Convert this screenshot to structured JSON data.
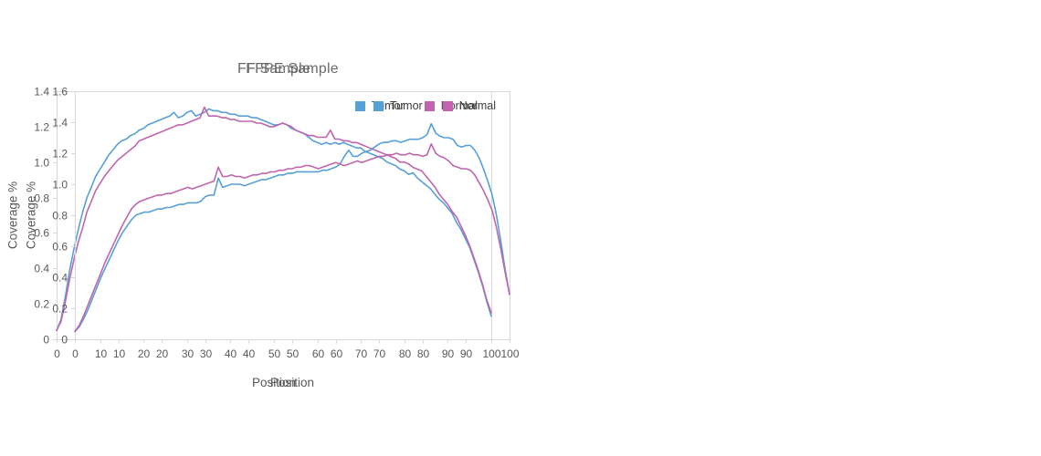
{
  "page": {
    "background": "#ffffff"
  },
  "colors": {
    "axis": "#d9d9d9",
    "tick_text": "#595959",
    "title_text": "#6b6b6b",
    "legend_text": "#3d3d3d",
    "tumor": "#57a0d6",
    "normal": "#c065ad"
  },
  "chart_data": [
    {
      "type": "line",
      "title": "FF Sample",
      "xlabel": "Position",
      "ylabel": "Coverage %",
      "xlim": [
        0,
        100
      ],
      "ylim": [
        0,
        1.4
      ],
      "xtick_labels": [
        "0",
        "10",
        "20",
        "30",
        "40",
        "50",
        "60",
        "70",
        "80",
        "90",
        "100"
      ],
      "ytick_labels": [
        "0",
        "0.2",
        "0.4",
        "0.6",
        "0.8",
        "1.0",
        "1.2",
        "1.4"
      ],
      "grid": false,
      "legend_position": "top-right",
      "x": [
        0,
        1,
        2,
        3,
        4,
        5,
        6,
        7,
        8,
        9,
        10,
        11,
        12,
        13,
        14,
        15,
        16,
        17,
        18,
        19,
        20,
        21,
        22,
        23,
        24,
        25,
        26,
        27,
        28,
        29,
        30,
        31,
        32,
        33,
        34,
        35,
        36,
        37,
        38,
        39,
        40,
        41,
        42,
        43,
        44,
        45,
        46,
        47,
        48,
        49,
        50,
        51,
        52,
        53,
        54,
        55,
        56,
        57,
        58,
        59,
        60,
        61,
        62,
        63,
        64,
        65,
        66,
        67,
        68,
        69,
        70,
        71,
        72,
        73,
        74,
        75,
        76,
        77,
        78,
        79,
        80,
        81,
        82,
        83,
        84,
        85,
        86,
        87,
        88,
        89,
        90,
        91,
        92,
        93,
        94,
        95,
        96,
        97,
        98,
        99,
        100
      ],
      "series": [
        {
          "name": "Tumor",
          "color": "#57a0d6",
          "values": [
            0.05,
            0.11,
            0.24,
            0.39,
            0.51,
            0.62,
            0.72,
            0.8,
            0.86,
            0.92,
            0.96,
            1.0,
            1.04,
            1.07,
            1.1,
            1.12,
            1.13,
            1.15,
            1.16,
            1.18,
            1.19,
            1.21,
            1.22,
            1.23,
            1.24,
            1.25,
            1.26,
            1.28,
            1.25,
            1.26,
            1.28,
            1.29,
            1.26,
            1.27,
            1.28,
            1.3,
            1.29,
            1.29,
            1.28,
            1.28,
            1.27,
            1.27,
            1.26,
            1.26,
            1.26,
            1.25,
            1.25,
            1.24,
            1.23,
            1.22,
            1.21,
            1.21,
            1.22,
            1.21,
            1.19,
            1.18,
            1.17,
            1.16,
            1.14,
            1.12,
            1.11,
            1.1,
            1.11,
            1.1,
            1.11,
            1.1,
            1.11,
            1.1,
            1.09,
            1.08,
            1.08,
            1.06,
            1.05,
            1.04,
            1.03,
            1.02,
            1.0,
            0.99,
            0.98,
            0.96,
            0.95,
            0.93,
            0.94,
            0.91,
            0.89,
            0.87,
            0.85,
            0.82,
            0.79,
            0.77,
            0.74,
            0.71,
            0.66,
            0.62,
            0.57,
            0.52,
            0.45,
            0.38,
            0.3,
            0.21,
            0.13
          ]
        },
        {
          "name": "Normal",
          "color": "#c065ad",
          "values": [
            0.05,
            0.1,
            0.21,
            0.34,
            0.45,
            0.55,
            0.63,
            0.72,
            0.78,
            0.84,
            0.88,
            0.92,
            0.95,
            0.98,
            1.01,
            1.03,
            1.05,
            1.07,
            1.09,
            1.12,
            1.13,
            1.14,
            1.15,
            1.16,
            1.17,
            1.18,
            1.19,
            1.2,
            1.21,
            1.21,
            1.22,
            1.23,
            1.24,
            1.25,
            1.31,
            1.26,
            1.26,
            1.26,
            1.25,
            1.25,
            1.24,
            1.24,
            1.23,
            1.23,
            1.23,
            1.23,
            1.22,
            1.22,
            1.21,
            1.2,
            1.2,
            1.21,
            1.22,
            1.21,
            1.2,
            1.18,
            1.17,
            1.16,
            1.15,
            1.15,
            1.14,
            1.14,
            1.14,
            1.18,
            1.13,
            1.13,
            1.12,
            1.12,
            1.11,
            1.11,
            1.1,
            1.09,
            1.08,
            1.07,
            1.06,
            1.05,
            1.04,
            1.03,
            1.02,
            1.0,
            1.0,
            0.99,
            0.97,
            0.96,
            0.95,
            0.92,
            0.89,
            0.86,
            0.82,
            0.79,
            0.76,
            0.72,
            0.69,
            0.64,
            0.59,
            0.53,
            0.46,
            0.39,
            0.31,
            0.22,
            0.15
          ]
        }
      ]
    },
    {
      "type": "line",
      "title": "FFPE Sample",
      "xlabel": "Position",
      "ylabel": "Coverage %",
      "xlim": [
        0,
        100
      ],
      "ylim": [
        0,
        1.6
      ],
      "xtick_labels": [
        "0",
        "10",
        "20",
        "30",
        "40",
        "50",
        "60",
        "70",
        "80",
        "90",
        "100"
      ],
      "ytick_labels": [
        "0",
        "0.2",
        "0.4",
        "0.6",
        "0.8",
        "1.0",
        "1.2",
        "1.4",
        "1.6"
      ],
      "grid": false,
      "legend_position": "top-right",
      "x": [
        0,
        1,
        2,
        3,
        4,
        5,
        6,
        7,
        8,
        9,
        10,
        11,
        12,
        13,
        14,
        15,
        16,
        17,
        18,
        19,
        20,
        21,
        22,
        23,
        24,
        25,
        26,
        27,
        28,
        29,
        30,
        31,
        32,
        33,
        34,
        35,
        36,
        37,
        38,
        39,
        40,
        41,
        42,
        43,
        44,
        45,
        46,
        47,
        48,
        49,
        50,
        51,
        52,
        53,
        54,
        55,
        56,
        57,
        58,
        59,
        60,
        61,
        62,
        63,
        64,
        65,
        66,
        67,
        68,
        69,
        70,
        71,
        72,
        73,
        74,
        75,
        76,
        77,
        78,
        79,
        80,
        81,
        82,
        83,
        84,
        85,
        86,
        87,
        88,
        89,
        90,
        91,
        92,
        93,
        94,
        95,
        96,
        97,
        98,
        99,
        100
      ],
      "series": [
        {
          "name": "Tumor",
          "color": "#57a0d6",
          "values": [
            0.05,
            0.08,
            0.13,
            0.19,
            0.26,
            0.33,
            0.4,
            0.46,
            0.52,
            0.58,
            0.64,
            0.69,
            0.73,
            0.77,
            0.8,
            0.81,
            0.82,
            0.82,
            0.83,
            0.84,
            0.84,
            0.85,
            0.85,
            0.86,
            0.87,
            0.87,
            0.88,
            0.88,
            0.88,
            0.89,
            0.92,
            0.93,
            0.93,
            1.04,
            0.98,
            0.99,
            1.0,
            1.0,
            1.0,
            0.99,
            1.0,
            1.01,
            1.02,
            1.03,
            1.03,
            1.04,
            1.05,
            1.06,
            1.06,
            1.07,
            1.07,
            1.08,
            1.08,
            1.08,
            1.08,
            1.08,
            1.08,
            1.09,
            1.09,
            1.1,
            1.11,
            1.13,
            1.18,
            1.22,
            1.18,
            1.18,
            1.2,
            1.21,
            1.22,
            1.24,
            1.26,
            1.27,
            1.27,
            1.28,
            1.28,
            1.27,
            1.28,
            1.29,
            1.29,
            1.29,
            1.3,
            1.32,
            1.39,
            1.33,
            1.31,
            1.3,
            1.3,
            1.29,
            1.25,
            1.24,
            1.25,
            1.25,
            1.22,
            1.17,
            1.1,
            1.02,
            0.93,
            0.8,
            0.63,
            0.45,
            0.29
          ]
        },
        {
          "name": "Normal",
          "color": "#c065ad",
          "values": [
            0.05,
            0.09,
            0.15,
            0.22,
            0.29,
            0.36,
            0.43,
            0.5,
            0.56,
            0.62,
            0.68,
            0.74,
            0.79,
            0.84,
            0.87,
            0.89,
            0.9,
            0.91,
            0.92,
            0.93,
            0.93,
            0.94,
            0.94,
            0.95,
            0.96,
            0.97,
            0.98,
            0.97,
            0.98,
            0.99,
            1.0,
            1.01,
            1.02,
            1.11,
            1.05,
            1.05,
            1.06,
            1.05,
            1.05,
            1.04,
            1.05,
            1.06,
            1.06,
            1.07,
            1.07,
            1.08,
            1.08,
            1.09,
            1.09,
            1.1,
            1.1,
            1.11,
            1.11,
            1.12,
            1.12,
            1.11,
            1.1,
            1.11,
            1.12,
            1.13,
            1.14,
            1.13,
            1.12,
            1.13,
            1.14,
            1.15,
            1.14,
            1.15,
            1.16,
            1.17,
            1.18,
            1.18,
            1.19,
            1.19,
            1.2,
            1.19,
            1.19,
            1.2,
            1.19,
            1.19,
            1.18,
            1.19,
            1.26,
            1.2,
            1.18,
            1.17,
            1.15,
            1.12,
            1.11,
            1.1,
            1.1,
            1.09,
            1.06,
            1.01,
            0.96,
            0.9,
            0.83,
            0.72,
            0.58,
            0.43,
            0.29
          ]
        }
      ]
    }
  ]
}
